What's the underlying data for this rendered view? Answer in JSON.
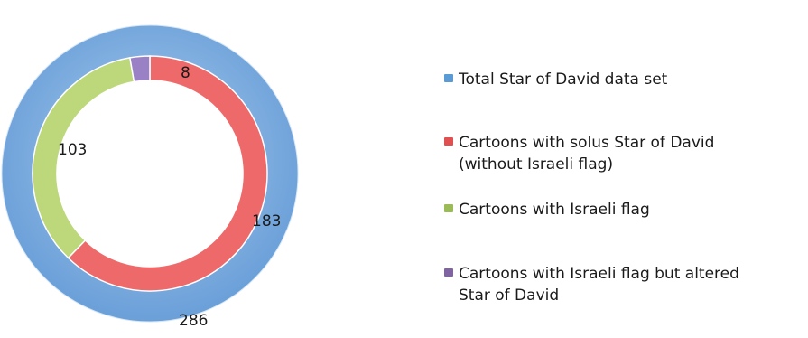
{
  "chart_data": {
    "type": "donut",
    "rings": [
      {
        "ring": "outer",
        "series": [
          {
            "name": "Total Star of David data set",
            "value": 286,
            "color": "#7eaee0"
          }
        ]
      },
      {
        "ring": "inner",
        "series": [
          {
            "name": "Cartoons with solus Star of David (without Israeli flag)",
            "value": 183,
            "color": "#ee6a6a"
          },
          {
            "name": "Cartoons with Israeli flag",
            "value": 103,
            "color": "#bcd87a"
          },
          {
            "name": "Cartoons with Israeli flag but altered Star of David",
            "value": 8,
            "color": "#9a80c4"
          }
        ]
      }
    ],
    "legend_position": "right"
  },
  "legend": [
    {
      "label": "Total Star of David data set",
      "color": "#5b9bd5"
    },
    {
      "label": "Cartoons with solus Star of David\n(without Israeli flag)",
      "color": "#e05050"
    },
    {
      "label": "Cartoons with Israeli flag",
      "color": "#9bbb59"
    },
    {
      "label": "Cartoons with Israeli flag but altered\nStar of David",
      "color": "#8064a2"
    }
  ],
  "data_labels": {
    "total": "286",
    "solus": "183",
    "flag": "103",
    "altered": "8"
  }
}
